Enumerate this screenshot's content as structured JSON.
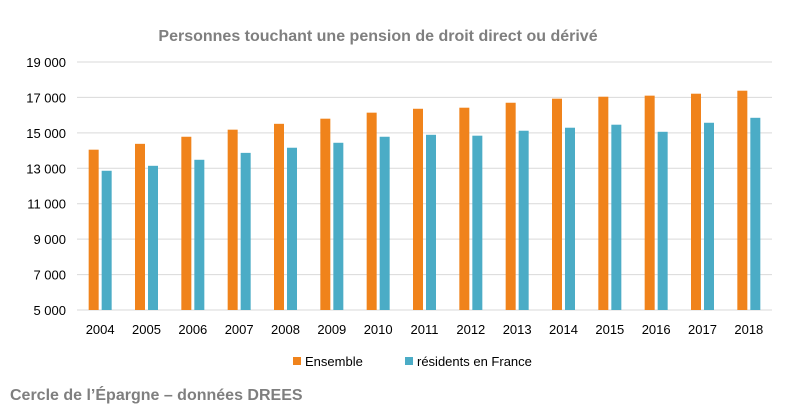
{
  "chart_data": {
    "type": "bar",
    "title": "Personnes touchant une pension de droit direct ou dérivé",
    "xlabel": "",
    "ylabel": "",
    "ylim": [
      5000,
      19000
    ],
    "yticks": [
      "5 000",
      "7 000",
      "9 000",
      "11 000",
      "13 000",
      "15 000",
      "17 000",
      "19 000"
    ],
    "ytick_values": [
      5000,
      7000,
      9000,
      11000,
      13000,
      15000,
      17000,
      19000
    ],
    "grid": true,
    "legend_position": "bottom",
    "categories": [
      "2004",
      "2005",
      "2006",
      "2007",
      "2008",
      "2009",
      "2010",
      "2011",
      "2012",
      "2013",
      "2014",
      "2015",
      "2016",
      "2017",
      "2018"
    ],
    "series": [
      {
        "name": "Ensemble",
        "color": "#f0831b",
        "values": [
          14050,
          14380,
          14780,
          15180,
          15510,
          15800,
          16140,
          16360,
          16420,
          16700,
          16930,
          17040,
          17100,
          17210,
          17380
        ]
      },
      {
        "name": "résidents en France",
        "color": "#4bacc6",
        "values": [
          12860,
          13140,
          13480,
          13870,
          14160,
          14440,
          14780,
          14890,
          14840,
          15120,
          15290,
          15460,
          15060,
          15570,
          15850
        ]
      }
    ]
  },
  "footer": "Cercle de l’Épargne – données DREES"
}
